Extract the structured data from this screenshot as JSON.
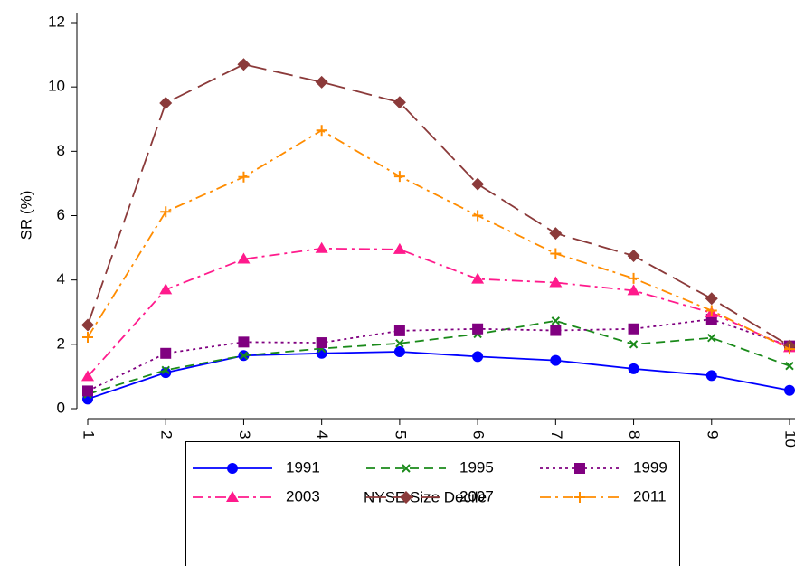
{
  "chart_data": {
    "type": "line",
    "x_label": "NYSE Size Decile",
    "y_label": "SR (%)",
    "x": [
      1,
      2,
      3,
      4,
      5,
      6,
      7,
      8,
      9,
      10
    ],
    "xlim": [
      1,
      10
    ],
    "xticks": [
      1,
      2,
      3,
      4,
      5,
      6,
      7,
      8,
      9,
      10
    ],
    "ylim": [
      0,
      12
    ],
    "yticks": [
      0,
      2,
      4,
      6,
      8,
      10,
      12
    ],
    "grid": false,
    "legend": "bottom",
    "series": [
      {
        "name": "1991",
        "color": "#0000ff",
        "dash": "solid",
        "marker": "circle",
        "values": [
          0.3,
          1.12,
          1.65,
          1.72,
          1.77,
          1.62,
          1.5,
          1.24,
          1.03,
          0.57
        ]
      },
      {
        "name": "1995",
        "color": "#1a8a1a",
        "dash": "dash",
        "marker": "x",
        "values": [
          0.45,
          1.2,
          1.65,
          1.87,
          2.03,
          2.32,
          2.73,
          2.0,
          2.2,
          1.33
        ]
      },
      {
        "name": "1999",
        "color": "#800080",
        "dash": "dot",
        "marker": "square",
        "values": [
          0.55,
          1.72,
          2.07,
          2.05,
          2.42,
          2.48,
          2.43,
          2.48,
          2.78,
          1.95
        ]
      },
      {
        "name": "2003",
        "color": "#ff1a8c",
        "dash": "dashdot",
        "marker": "triangle",
        "values": [
          1.0,
          3.7,
          4.65,
          4.98,
          4.95,
          4.03,
          3.92,
          3.67,
          2.98,
          1.9
        ]
      },
      {
        "name": "2007",
        "color": "#8b3a3a",
        "dash": "longdash",
        "marker": "diamond",
        "values": [
          2.6,
          9.5,
          10.7,
          10.15,
          9.52,
          6.98,
          5.45,
          4.75,
          3.42,
          1.95
        ]
      },
      {
        "name": "2011",
        "color": "#ff8c00",
        "dash": "dashdot",
        "marker": "plus",
        "values": [
          2.22,
          6.12,
          7.2,
          8.65,
          7.22,
          6.0,
          4.82,
          4.05,
          3.05,
          1.85
        ]
      }
    ]
  }
}
